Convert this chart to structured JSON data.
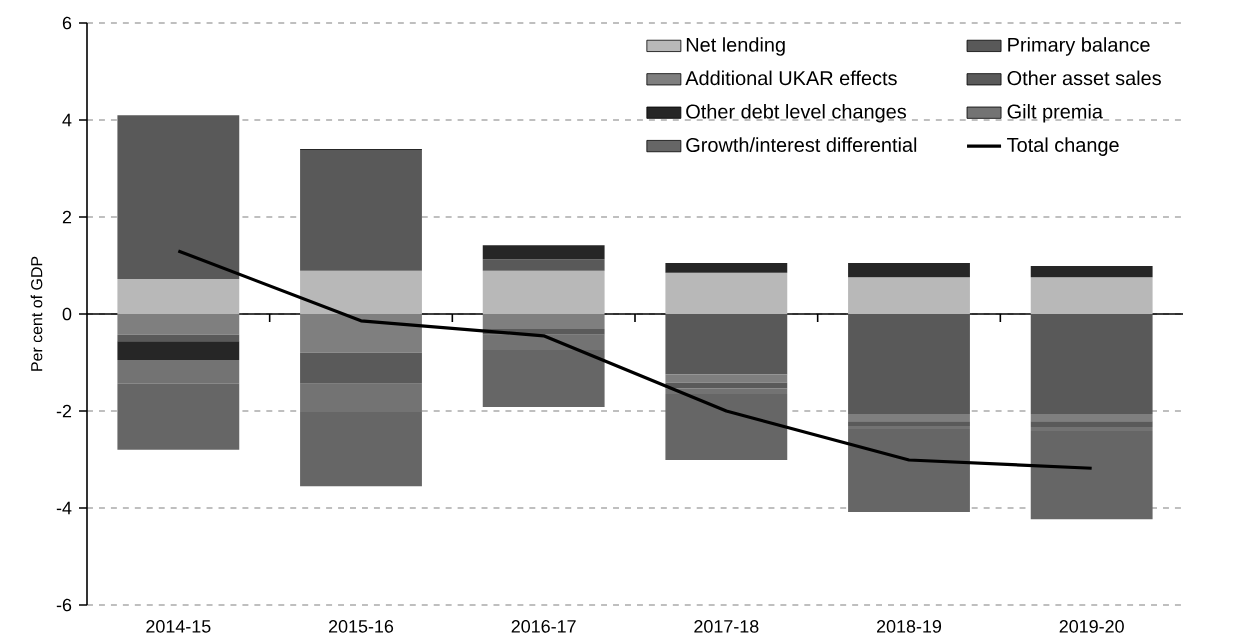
{
  "chart_data": {
    "type": "bar",
    "stacked": true,
    "ylabel": "Per cent of GDP",
    "categories": [
      "2014-15",
      "2015-16",
      "2016-17",
      "2017-18",
      "2018-19",
      "2019-20"
    ],
    "ylim": [
      -6,
      6
    ],
    "yticks": [
      -6,
      -4,
      -2,
      0,
      2,
      4,
      6
    ],
    "grid": "y",
    "legend": "top right",
    "series": [
      {
        "name": "Net lending",
        "color": "#b8b8b8",
        "values": [
          0.72,
          0.89,
          0.89,
          0.85,
          0.76,
          0.76
        ]
      },
      {
        "name": "Primary balance",
        "color": "#595959",
        "values": [
          3.38,
          2.49,
          0.24,
          -1.24,
          -2.06,
          -2.06
        ]
      },
      {
        "name": "Additional UKAR effects",
        "color": "#7f7f7f",
        "values": [
          -0.43,
          -0.8,
          -0.31,
          -0.18,
          -0.15,
          -0.15
        ]
      },
      {
        "name": "Other asset sales",
        "color": "#5a5a5a",
        "values": [
          -0.13,
          -0.64,
          -0.12,
          -0.11,
          -0.1,
          -0.12
        ]
      },
      {
        "name": "Other debt level changes",
        "color": "#262626",
        "values": [
          -0.39,
          0.02,
          0.29,
          0.2,
          0.29,
          0.23
        ]
      },
      {
        "name": "Gilt premia",
        "color": "#737373",
        "values": [
          -0.49,
          -0.58,
          -0.31,
          -0.12,
          -0.06,
          -0.08
        ]
      },
      {
        "name": "Growth/interest differential",
        "color": "#666666",
        "values": [
          -1.36,
          -1.53,
          -1.18,
          -1.36,
          -1.71,
          -1.82
        ]
      },
      {
        "name": "Total change",
        "type": "line",
        "color": "#000000",
        "values": [
          1.3,
          -0.14,
          -0.45,
          -2.0,
          -3.01,
          -3.18
        ]
      }
    ]
  }
}
